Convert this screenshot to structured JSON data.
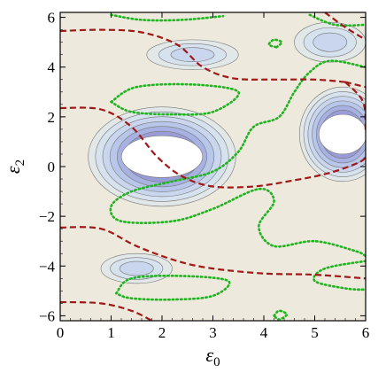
{
  "chart_data": {
    "type": "contour",
    "xlabel": "ε",
    "xlabel_sub": "0",
    "ylabel": "ε",
    "ylabel_sub": "2",
    "xlim": [
      0,
      6
    ],
    "ylim": [
      -6.2,
      6.2
    ],
    "xticks": [
      0,
      1,
      2,
      3,
      4,
      5,
      6
    ],
    "yticks": [
      -6,
      -4,
      -2,
      0,
      2,
      4,
      6
    ],
    "ytick_labels": [
      "−6",
      "−4",
      "−2",
      "0",
      "2",
      "4",
      "6"
    ],
    "grid": false,
    "legend": "none",
    "colors": {
      "background_fill": "#ede9dc",
      "level_fills": [
        "#e2e7e8",
        "#d6e2ee",
        "#c9d6ee",
        "#b8c6ea",
        "#a8b2e2",
        "#9a9cd8",
        "#8c84cc",
        "#7e6abd",
        "#6f52ad"
      ],
      "contour_line": "#777777",
      "red_dashed": "#a01818",
      "green_dotted": "#21b421"
    },
    "filled_regions": [
      {
        "name": "left-lobe",
        "cx": 2.0,
        "cy": 0.4,
        "rx": 1.45,
        "ry": 2.0,
        "hole": true
      },
      {
        "name": "right-lobe",
        "cx": 5.55,
        "cy": 1.3,
        "rx": 0.85,
        "ry": 1.9,
        "hole": true
      },
      {
        "name": "top-right-blob",
        "cx": 5.3,
        "cy": 5.0,
        "rx": 0.7,
        "ry": 0.8,
        "hole": false
      },
      {
        "name": "top-center-blob",
        "cx": 2.6,
        "cy": 4.5,
        "rx": 0.9,
        "ry": 0.6,
        "hole": false
      },
      {
        "name": "bottom-left-blob",
        "cx": 1.5,
        "cy": -4.1,
        "rx": 0.7,
        "ry": 0.6,
        "hole": false
      }
    ],
    "red_dashed_curves": [
      [
        [
          0,
          5.45
        ],
        [
          0.8,
          5.5
        ],
        [
          1.6,
          5.4
        ],
        [
          2.3,
          4.9
        ],
        [
          2.8,
          4.0
        ],
        [
          3.4,
          3.55
        ],
        [
          4.2,
          3.5
        ],
        [
          5.0,
          3.5
        ],
        [
          5.6,
          3.4
        ]
      ],
      [
        [
          5.6,
          3.4
        ],
        [
          6.0,
          3.2
        ]
      ],
      [
        [
          5.2,
          6.2
        ],
        [
          5.6,
          5.6
        ],
        [
          6.0,
          5.1
        ]
      ],
      [
        [
          0,
          2.35
        ],
        [
          0.8,
          2.3
        ],
        [
          1.4,
          1.6
        ],
        [
          1.9,
          0.4
        ],
        [
          2.4,
          -0.4
        ],
        [
          3.0,
          -0.8
        ],
        [
          3.8,
          -0.8
        ],
        [
          4.6,
          -0.55
        ],
        [
          5.3,
          -0.25
        ],
        [
          5.9,
          0.2
        ],
        [
          6.0,
          0.5
        ]
      ],
      [
        [
          5.6,
          3.4
        ],
        [
          5.95,
          2.6
        ],
        [
          6.0,
          1.4
        ]
      ],
      [
        [
          0,
          -2.45
        ],
        [
          0.8,
          -2.5
        ],
        [
          1.5,
          -3.2
        ],
        [
          2.3,
          -3.8
        ],
        [
          3.0,
          -4.1
        ],
        [
          4.0,
          -4.3
        ],
        [
          5.0,
          -4.35
        ],
        [
          6.0,
          -4.5
        ]
      ],
      [
        [
          0,
          -5.45
        ],
        [
          0.8,
          -5.5
        ],
        [
          1.4,
          -5.8
        ],
        [
          1.8,
          -6.2
        ]
      ]
    ],
    "green_dotted_curves": [
      [
        [
          1.0,
          6.1
        ],
        [
          1.6,
          5.9
        ],
        [
          2.4,
          5.9
        ],
        [
          3.2,
          6.05
        ]
      ],
      [
        [
          4.9,
          6.1
        ],
        [
          5.4,
          5.7
        ],
        [
          6.0,
          5.7
        ]
      ],
      [
        [
          4.25,
          4.8
        ],
        [
          4.35,
          5.0
        ],
        [
          4.2,
          5.1
        ],
        [
          4.1,
          4.9
        ],
        [
          4.25,
          4.8
        ]
      ],
      [
        [
          1.0,
          2.6
        ],
        [
          1.5,
          3.2
        ],
        [
          2.6,
          3.3
        ],
        [
          3.5,
          3.0
        ],
        [
          3.0,
          2.2
        ],
        [
          2.2,
          2.1
        ],
        [
          1.4,
          2.2
        ],
        [
          1.0,
          2.6
        ]
      ],
      [
        [
          6.0,
          4.0
        ],
        [
          5.3,
          4.25
        ],
        [
          4.9,
          3.8
        ],
        [
          4.6,
          3.0
        ],
        [
          4.3,
          2.0
        ],
        [
          3.8,
          1.6
        ],
        [
          3.5,
          0.6
        ],
        [
          3.0,
          -0.2
        ],
        [
          2.2,
          -0.6
        ],
        [
          1.4,
          -1.0
        ],
        [
          1.0,
          -1.6
        ],
        [
          1.2,
          -2.2
        ],
        [
          2.2,
          -2.2
        ],
        [
          3.0,
          -1.7
        ],
        [
          3.9,
          -0.9
        ],
        [
          4.2,
          -1.4
        ],
        [
          3.9,
          -2.4
        ],
        [
          4.2,
          -3.2
        ],
        [
          5.0,
          -3.0
        ],
        [
          5.8,
          -3.4
        ],
        [
          6.0,
          -3.6
        ]
      ],
      [
        [
          6.0,
          -3.8
        ],
        [
          5.2,
          -4.1
        ],
        [
          5.0,
          -4.6
        ],
        [
          5.6,
          -4.9
        ],
        [
          6.0,
          -4.95
        ]
      ],
      [
        [
          1.1,
          -5.1
        ],
        [
          1.4,
          -4.5
        ],
        [
          2.4,
          -4.4
        ],
        [
          3.3,
          -4.6
        ],
        [
          3.0,
          -5.2
        ],
        [
          2.2,
          -5.35
        ],
        [
          1.4,
          -5.3
        ],
        [
          1.1,
          -5.1
        ]
      ],
      [
        [
          4.2,
          -6.0
        ],
        [
          4.3,
          -5.8
        ],
        [
          4.45,
          -5.95
        ],
        [
          4.3,
          -6.15
        ],
        [
          4.2,
          -6.0
        ]
      ]
    ]
  }
}
